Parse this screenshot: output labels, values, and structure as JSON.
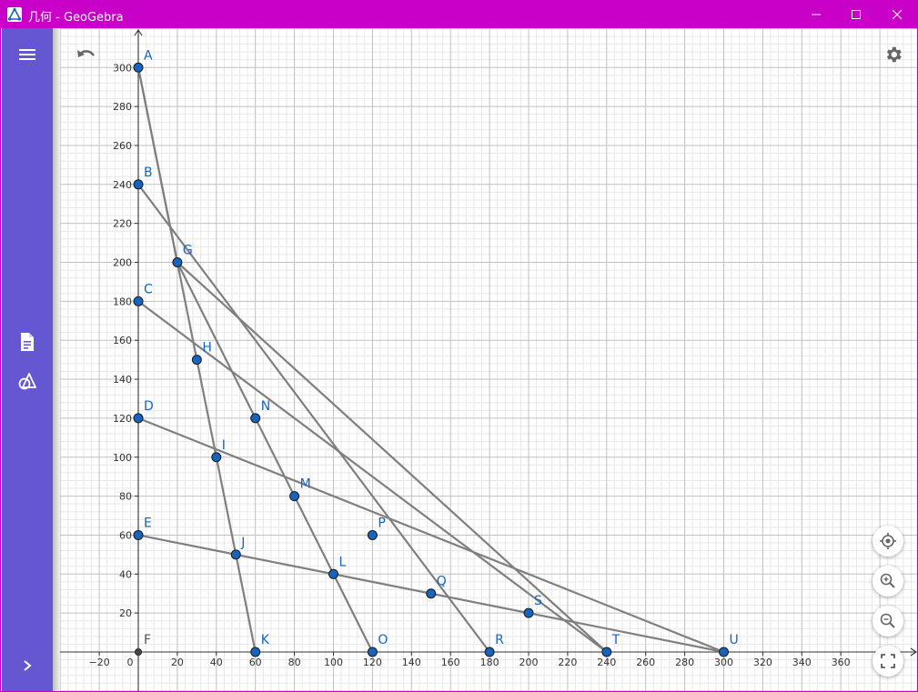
{
  "window": {
    "title": "几何 - GeoGebra"
  },
  "colors": {
    "title_bar": "#c800c8",
    "sidebar": "#6557d2",
    "point_fill": "#1565c0",
    "label": "#1565c0",
    "segment": "#7f7f7f"
  },
  "sidebar": {
    "items": [
      {
        "name": "menu-icon"
      },
      {
        "name": "algebra-view-icon"
      },
      {
        "name": "tools-icon"
      },
      {
        "name": "expand-icon"
      }
    ]
  },
  "graphics": {
    "x_ticks": [
      "−20",
      "0",
      "20",
      "40",
      "60",
      "80",
      "100",
      "120",
      "140",
      "160",
      "180",
      "200",
      "220",
      "240",
      "260",
      "280",
      "300",
      "320",
      "340",
      "360"
    ],
    "y_ticks": [
      "20",
      "40",
      "60",
      "80",
      "100",
      "120",
      "140",
      "160",
      "180",
      "200",
      "220",
      "240",
      "260",
      "280",
      "300"
    ],
    "points": [
      {
        "label": "A",
        "x": 0,
        "y": 300
      },
      {
        "label": "B",
        "x": 0,
        "y": 240
      },
      {
        "label": "C",
        "x": 0,
        "y": 180
      },
      {
        "label": "D",
        "x": 0,
        "y": 120
      },
      {
        "label": "E",
        "x": 0,
        "y": 60
      },
      {
        "label": "F",
        "x": 0,
        "y": 0,
        "style": "origin"
      },
      {
        "label": "G",
        "x": 20,
        "y": 200
      },
      {
        "label": "H",
        "x": 30,
        "y": 150
      },
      {
        "label": "I",
        "x": 40,
        "y": 100
      },
      {
        "label": "J",
        "x": 50,
        "y": 50
      },
      {
        "label": "K",
        "x": 60,
        "y": 0
      },
      {
        "label": "L",
        "x": 100,
        "y": 40
      },
      {
        "label": "M",
        "x": 80,
        "y": 80
      },
      {
        "label": "N",
        "x": 60,
        "y": 120
      },
      {
        "label": "O",
        "x": 120,
        "y": 0
      },
      {
        "label": "P",
        "x": 120,
        "y": 60
      },
      {
        "label": "Q",
        "x": 150,
        "y": 30
      },
      {
        "label": "R",
        "x": 180,
        "y": 0
      },
      {
        "label": "S",
        "x": 200,
        "y": 20
      },
      {
        "label": "T",
        "x": 240,
        "y": 0
      },
      {
        "label": "U",
        "x": 300,
        "y": 0
      }
    ],
    "segments": [
      [
        "A",
        "K"
      ],
      [
        "B",
        "R"
      ],
      [
        "C",
        "T"
      ],
      [
        "D",
        "U"
      ],
      [
        "A",
        "G"
      ],
      [
        "G",
        "O"
      ],
      [
        "G",
        "T"
      ],
      [
        "E",
        "U"
      ]
    ]
  }
}
